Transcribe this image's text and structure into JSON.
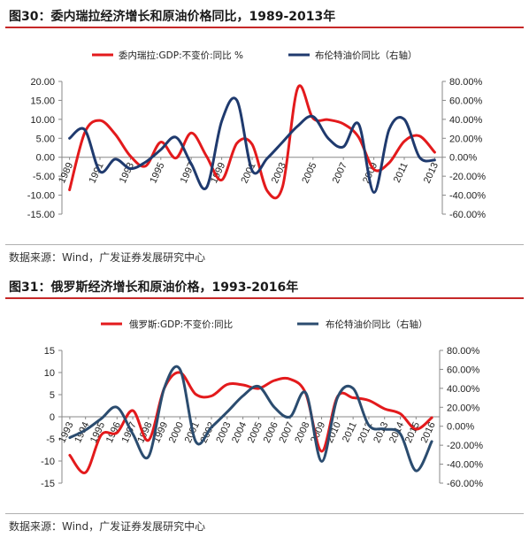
{
  "figures": [
    {
      "title": "图30：委内瑞拉经济增长和原油价格同比，1989-2013年",
      "source": "数据来源：Wind，广发证券发展研究中心"
    },
    {
      "title": "图31：俄罗斯经济增长和原油价格，1993-2016年",
      "source": "数据来源：Wind，广发证券发展研究中心"
    }
  ],
  "chart_data": [
    {
      "type": "line",
      "series": [
        {
          "name": "委内瑞拉:GDP:不变价:同比 %",
          "color": "#e31a1c",
          "axis": "left",
          "x": [
            1989,
            1990,
            1991,
            1992,
            1993,
            1994,
            1995,
            1996,
            1997,
            1998,
            1999,
            2000,
            2001,
            2002,
            2003,
            2004,
            2005,
            2006,
            2007,
            2008,
            2009,
            2010,
            2011,
            2012,
            2013
          ],
          "values": [
            -8.6,
            6.5,
            9.7,
            6.1,
            0.3,
            -2.3,
            4.0,
            -0.2,
            6.4,
            0.3,
            -6.0,
            3.7,
            3.4,
            -8.9,
            -7.8,
            18.3,
            10.3,
            9.9,
            8.8,
            5.3,
            -3.2,
            -1.5,
            4.2,
            5.6,
            1.3
          ]
        },
        {
          "name": "布伦特油价同比（右轴）",
          "color": "#1f3a6e",
          "axis": "right",
          "x": [
            1989,
            1990,
            1991,
            1992,
            1993,
            1994,
            1995,
            1996,
            1997,
            1998,
            1999,
            2000,
            2001,
            2002,
            2003,
            2004,
            2005,
            2006,
            2007,
            2008,
            2009,
            2010,
            2011,
            2012,
            2013
          ],
          "values": [
            20,
            29,
            -15,
            -2,
            -12,
            -5,
            8,
            21,
            -7,
            -32,
            38,
            60,
            -14,
            -1,
            16,
            33,
            43,
            20,
            11,
            35,
            -37,
            29,
            40,
            0,
            -3
          ]
        }
      ],
      "y_left": {
        "min": -15,
        "max": 20,
        "ticks": [
          "20.00",
          "15.00",
          "10.00",
          "5.00",
          "0.00",
          "-5.00",
          "-10.00",
          "-15.00"
        ]
      },
      "y_right": {
        "min": -60,
        "max": 80,
        "ticks": [
          "80.00%",
          "60.00%",
          "40.00%",
          "20.00%",
          "0.00%",
          "-20.00%",
          "-40.00%",
          "-60.00%"
        ]
      },
      "x_tick_labels": [
        "1989",
        "1991",
        "1993",
        "1995",
        "1997",
        "1999",
        "2001",
        "2003",
        "2005",
        "2007",
        "2009",
        "2011",
        "2013"
      ],
      "legend_position": "top"
    },
    {
      "type": "line",
      "series": [
        {
          "name": "俄罗斯:GDP:不变价:同比",
          "color": "#e31a1c",
          "axis": "left",
          "x": [
            1993,
            1994,
            1995,
            1996,
            1997,
            1998,
            1999,
            2000,
            2001,
            2002,
            2003,
            2004,
            2005,
            2006,
            2007,
            2008,
            2009,
            2010,
            2011,
            2012,
            2013,
            2014,
            2015,
            2016
          ],
          "values": [
            -8.7,
            -12.6,
            -4.1,
            -3.6,
            1.4,
            -5.3,
            6.4,
            10.0,
            5.1,
            4.7,
            7.3,
            7.2,
            6.4,
            8.2,
            8.5,
            5.2,
            -7.8,
            4.5,
            4.3,
            3.7,
            1.8,
            0.7,
            -2.8,
            -0.2
          ]
        },
        {
          "name": "布伦特油价同比（右轴）",
          "color": "#2b4c6f",
          "axis": "right",
          "x": [
            1993,
            1994,
            1995,
            1996,
            1997,
            1998,
            1999,
            2000,
            2001,
            2002,
            2003,
            2004,
            2005,
            2006,
            2007,
            2008,
            2009,
            2010,
            2011,
            2012,
            2013,
            2014,
            2015,
            2016
          ],
          "values": [
            -12,
            -4,
            8,
            20,
            -8,
            -32,
            40,
            60,
            -16,
            -1,
            15,
            32,
            42,
            20,
            10,
            35,
            -37,
            30,
            40,
            1,
            -3,
            -8,
            -47,
            -16
          ]
        }
      ],
      "y_left": {
        "min": -15,
        "max": 15,
        "ticks": [
          "15",
          "10",
          "5",
          "0",
          "-5",
          "-10",
          "-15"
        ]
      },
      "y_right": {
        "min": -60,
        "max": 80,
        "ticks": [
          "80.00%",
          "60.00%",
          "40.00%",
          "20.00%",
          "0.00%",
          "-20.00%",
          "-40.00%",
          "-60.00%"
        ]
      },
      "x_tick_labels": [
        "1993",
        "1994",
        "1995",
        "1996",
        "1997",
        "1998",
        "1999",
        "2000",
        "2001",
        "2002",
        "2003",
        "2004",
        "2005",
        "2006",
        "2007",
        "2008",
        "2009",
        "2010",
        "2011",
        "2012",
        "2013",
        "2014",
        "2015",
        "2016"
      ],
      "legend_position": "top"
    }
  ]
}
